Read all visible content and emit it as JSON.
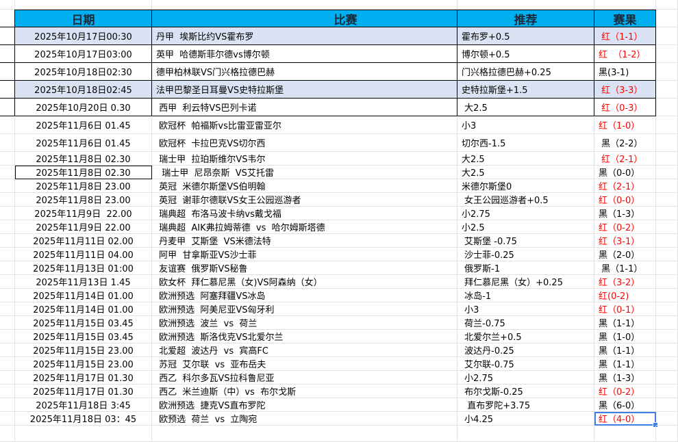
{
  "header": {
    "date": "日期",
    "match": "比赛",
    "pick": "推荐",
    "result": "赛果"
  },
  "colors": {
    "header_bg": "#00b0f0",
    "row_highlight": "#dae3f3",
    "win_red": "#ff0000",
    "selection": "#3d7fe6"
  },
  "rows": [
    {
      "date": "2025年10月17日00:30",
      "match": "丹甲  埃斯比约VS霍布罗",
      "pick": "霍布罗+0.5",
      "result": " 红（1-1）",
      "win": true,
      "shade": true
    },
    {
      "date": "2025年10月17日03:00",
      "match": "英甲  哈德斯菲尔德vs博尔顿",
      "pick": "博尔顿+0.5",
      "result": "红  （1-2）",
      "win": true
    },
    {
      "date": "2025年10月18日02:30",
      "match": "德甲柏林联VS门兴格拉德巴赫",
      "pick": "门兴格拉德巴赫+0.25",
      "result": "黑(3-1)",
      "win": false
    },
    {
      "date": "2025年10月18日02:45",
      "match": "法甲巴黎圣日耳曼VS史特拉斯堡",
      "pick": "史特拉斯堡+1.5",
      "result": " 红（3-3）",
      "win": true,
      "shade": true
    },
    {
      "date": "2025年10月20日 0.30",
      "match": " 西甲  利云特VS巴列卡诺",
      "pick": " 大2.5",
      "result": " 红（0-3）",
      "win": true
    },
    {
      "date": "2025年11月6日 01.45",
      "match": " 欧冠杯  帕福斯vs比雷亚雷亚尔",
      "pick": "小3",
      "result": "红（1-0）",
      "win": true
    },
    {
      "date": "2025年11月6日 01.45",
      "match": " 欧冠杯  卡拉巴克VS切尔西",
      "pick": "切尔西-1.5",
      "result": " 黑（2-2）",
      "win": false
    },
    {
      "date": "2025年11月8日 02.30",
      "match": " 瑞士甲  拉珀斯维尔VS韦尔",
      "pick": "大2.5",
      "result": " 红（2-1）",
      "win": true
    },
    {
      "date": "2025年11月8日 02.30",
      "match": "  瑞士甲  尼昂奈斯  VS艾托雷",
      "pick": "大2.5",
      "result": "黑（0-0）",
      "win": false,
      "selected": true
    },
    {
      "date": "2025年11月8日 23.00",
      "match": " 英冠  米德尔斯堡VS伯明翰",
      "pick": "米德尔斯堡0",
      "result": "红（2-1）",
      "win": true
    },
    {
      "date": "2025年11月8日 23.00",
      "match": " 英冠  谢菲尔德联VS女王公园巡游者",
      "pick": " 女王公园巡游者+0.5",
      "result": "红（0-0）",
      "win": true
    },
    {
      "date": "2025年11月9日  22.00",
      "match": " 瑞典超  布洛马波卡纳vs戴戈福",
      "pick": "小2.75",
      "result": "黑（1-3）",
      "win": false
    },
    {
      "date": "2025年11月9日 22.00",
      "match": " 瑞典超  AIK弗拉姆蒂德  vs  哈尔姆斯塔德",
      "pick": "小2.5",
      "result": "红（0-2）",
      "win": true
    },
    {
      "date": "2025年11月11日 02.00",
      "match": " 丹麦甲  艾斯堡  VS米德法特",
      "pick": " 艾斯堡 -0.75",
      "result": "红（3-1）",
      "win": true
    },
    {
      "date": "2025年11月11日 04.00",
      "match": " 阿甲  甘拿斯亚VS沙士菲",
      "pick": " 沙士菲-0.25",
      "result": "黑（2-0）",
      "win": false
    },
    {
      "date": "2025年11月13日 01:00",
      "match": " 友谊赛  俄罗斯VS秘鲁",
      "pick": " 俄罗斯-1",
      "result": " 黑（1-1）",
      "win": false
    },
    {
      "date": "2025年11月13日 1.45",
      "match": " 欧女杯  拜仁慕尼黑（女)VS阿森纳（女）",
      "pick": " 拜仁慕尼黑（女）+0.25",
      "result": "红（3-2）",
      "win": true
    },
    {
      "date": "2025年11月14日 01.00",
      "match": " 欧洲预选  阿塞拜疆VS冰岛",
      "pick": " 冰岛-1",
      "result": "红(0-2)",
      "win": true
    },
    {
      "date": "2025年11月14日 01.00",
      "match": " 欧洲预选  阿美尼亚VS匈牙利",
      "pick": " 小3",
      "result": "红（0-1）",
      "win": true
    },
    {
      "date": "2025年11月15日 03.45",
      "match": " 欧洲预选  波兰  vs  荷兰",
      "pick": " 荷兰-0.75",
      "result": "黑（1-1）",
      "win": false
    },
    {
      "date": "2025年11月15日 03.45",
      "match": " 欧洲预选  斯洛伐克VS北爱尔兰",
      "pick": " 北爱尔兰+0.5",
      "result": "黑（1-0）",
      "win": false
    },
    {
      "date": "2025年11月15日 23.00",
      "match": " 北爱超  波达丹  vs  宾高FC",
      "pick": " 波达丹-0.25",
      "result": "黑（1-1）",
      "win": false
    },
    {
      "date": "2025年11月15日 23.00",
      "match": " 苏冠  艾尔联  vs  亚布岳夫",
      "pick": " 艾尔联-0.75",
      "result": "黑（1-1）",
      "win": false
    },
    {
      "date": "2025年11月17日 01.30",
      "match": " 西乙  科尔多瓦VS拉科鲁尼亚",
      "pick": " 小2.75",
      "result": "黑（1-3）",
      "win": false
    },
    {
      "date": "2025年11月17日 01.30",
      "match": " 西乙  米兰迪斯（中）vs  布尔戈斯",
      "pick": " 布尔戈斯-0.25",
      "result": "红（0-2）",
      "win": true
    },
    {
      "date": "2025年11月18日 3:45",
      "match": " 欧洲预选  捷克VS直布罗陀",
      "pick": "  直布罗陀+3.75",
      "result": "黑（6-0）",
      "win": false
    },
    {
      "date": "2025年11月18日 03：45",
      "match": " 欧预选  荷兰  vs  立陶宛",
      "pick": " 小4.25",
      "result": "红（4-0）",
      "win": true,
      "active": true
    }
  ]
}
